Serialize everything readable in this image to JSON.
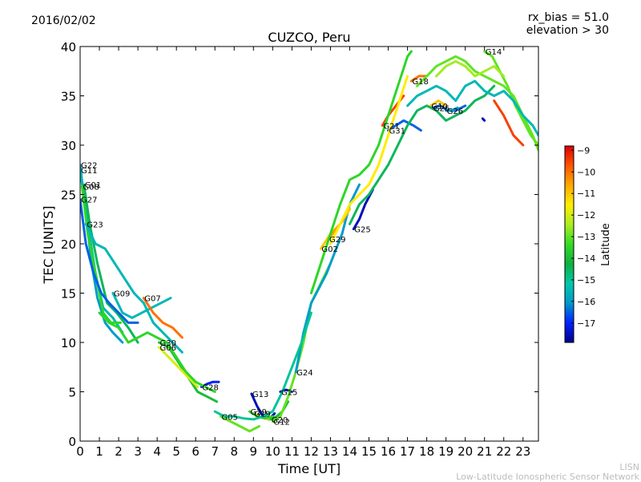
{
  "header": {
    "date": "2016/02/02",
    "rx_bias": "rx_bias = 51.0",
    "elevation": "elevation > 30"
  },
  "footer": {
    "line1": "LISN",
    "line2": "Low-Latitude Ionospheric Sensor Network"
  },
  "chart_data": {
    "type": "line",
    "title": "CUZCO, Peru",
    "xlabel": "Time [UT]",
    "ylabel": "TEC [UNITS]",
    "xlim": [
      0,
      23.8
    ],
    "ylim": [
      0,
      40
    ],
    "xticks": [
      0,
      1,
      2,
      3,
      4,
      5,
      6,
      7,
      8,
      9,
      10,
      11,
      12,
      13,
      14,
      15,
      16,
      17,
      18,
      19,
      20,
      21,
      22,
      23
    ],
    "yticks": [
      0,
      5,
      10,
      15,
      20,
      25,
      30,
      35,
      40
    ],
    "grid": false,
    "colorbar": {
      "label": "Latitude",
      "range": [
        -17.9,
        -8.8
      ],
      "ticks": [
        -9,
        -10,
        -11,
        -12,
        -13,
        -14,
        -15,
        -16,
        -17
      ],
      "colors": [
        "#00008b",
        "#0022ff",
        "#0099cc",
        "#00c8aa",
        "#10b040",
        "#33dd22",
        "#aaee22",
        "#ffee00",
        "#ffaa00",
        "#ff5500",
        "#dd0000"
      ]
    },
    "series": [
      {
        "name": "G22",
        "lat": -16.0,
        "x": [
          0,
          0.3,
          0.6,
          0.9,
          1.3,
          1.7,
          2.2
        ],
        "y": [
          28,
          23,
          18,
          14.5,
          12,
          11,
          10
        ]
      },
      {
        "name": "G11",
        "lat": -15.5,
        "x": [
          0,
          0.4,
          0.8,
          1.2,
          1.7,
          2.2
        ],
        "y": [
          27.5,
          22,
          17,
          13.5,
          12.5,
          11
        ]
      },
      {
        "name": "G01",
        "lat": -14.5,
        "x": [
          0.2,
          0.5,
          0.9,
          1.4,
          1.9,
          2.5,
          3.0
        ],
        "y": [
          26,
          22,
          18,
          14,
          13,
          11.5,
          10
        ]
      },
      {
        "name": "G08",
        "lat": -13.5,
        "x": [
          0.1,
          0.4,
          0.8,
          1.2,
          1.6,
          2.1
        ],
        "y": [
          25.8,
          21,
          17,
          13,
          12,
          12
        ]
      },
      {
        "name": "G27",
        "lat": -16.5,
        "x": [
          0,
          0.3,
          0.7,
          1.1,
          1.5,
          2.0,
          2.5,
          3.0
        ],
        "y": [
          24.5,
          20,
          17,
          15,
          14,
          13,
          12,
          12
        ]
      },
      {
        "name": "G23",
        "lat": -15.5,
        "x": [
          0.3,
          0.8,
          1.3,
          1.8,
          2.3,
          2.8,
          3.3,
          3.8,
          4.3,
          4.8,
          5.3
        ],
        "y": [
          22,
          20,
          19.5,
          18,
          16.5,
          15,
          14,
          12,
          11,
          10,
          9
        ]
      },
      {
        "name": "G09",
        "lat": -15.5,
        "x": [
          1.7,
          2.2,
          2.7,
          3.2,
          3.7,
          4.2,
          4.7
        ],
        "y": [
          15,
          13,
          12.5,
          13,
          13.5,
          14,
          14.5
        ]
      },
      {
        "name": "G07",
        "lat": -10.0,
        "x": [
          3.3,
          3.8,
          4.3,
          4.8,
          5.3
        ],
        "y": [
          14.5,
          13,
          12,
          11.5,
          10.5
        ]
      },
      {
        "name": "G30",
        "lat": -14.0,
        "x": [
          4.1,
          4.6,
          5.1,
          5.6,
          6.1,
          6.6,
          7.1
        ],
        "y": [
          10,
          9.5,
          8,
          6.5,
          5,
          4.5,
          4
        ]
      },
      {
        "name": "G06",
        "lat": -12.0,
        "x": [
          4.1,
          4.6,
          5.1,
          5.6,
          6.1
        ],
        "y": [
          9.5,
          8.5,
          7.5,
          6.5,
          5.5
        ]
      },
      {
        "name": "G28",
        "lat": -17.0,
        "x": [
          6.3,
          6.6,
          6.9,
          7.2
        ],
        "y": [
          5.5,
          5.8,
          6,
          6
        ]
      },
      {
        "name": "G05",
        "lat": -13.0,
        "x": [
          7.3,
          7.8,
          8.3,
          8.8,
          9.3
        ],
        "y": [
          2.5,
          2,
          1.5,
          1,
          1.5
        ]
      },
      {
        "name": "G13",
        "lat": -17.5,
        "x": [
          8.9,
          9.2,
          9.5,
          9.8,
          10.1
        ],
        "y": [
          4.8,
          3.5,
          2.5,
          2.2,
          2.8
        ]
      },
      {
        "name": "G19",
        "lat": -11.0,
        "x": [
          9.0,
          9.3,
          9.6,
          9.9
        ],
        "y": [
          2.8,
          2.5,
          2.3,
          2.2
        ]
      },
      {
        "name": "G29",
        "lat": -13.5,
        "x": [
          8.8,
          9.2,
          9.6,
          10.0
        ],
        "y": [
          3,
          2.5,
          2.3,
          2.5
        ]
      },
      {
        "name": "G15",
        "lat": -17.5,
        "x": [
          10.4,
          10.7,
          11.0
        ],
        "y": [
          5,
          5.2,
          5
        ]
      },
      {
        "name": "G20",
        "lat": -14.0,
        "x": [
          9.9,
          10.2,
          10.5,
          10.8
        ],
        "y": [
          2.2,
          2.5,
          3,
          4
        ]
      },
      {
        "name": "G12",
        "lat": -13.0,
        "x": [
          10.0,
          10.4,
          10.8,
          11.2,
          11.6,
          12.0,
          12.5,
          13.0
        ],
        "y": [
          2,
          2.5,
          4.5,
          7,
          10,
          14,
          16,
          18
        ]
      },
      {
        "name": "G24",
        "lat": -16.0,
        "x": [
          11.2,
          11.6,
          12.0,
          12.4,
          12.8,
          13.2,
          13.6,
          14.0,
          14.5
        ],
        "y": [
          7,
          11,
          14,
          15.5,
          17,
          19,
          21,
          24,
          26
        ]
      },
      {
        "name": "G02",
        "lat": -11.0,
        "x": [
          12.5,
          13.0,
          13.5,
          14.0
        ],
        "y": [
          19.5,
          21,
          22,
          23.5
        ]
      },
      {
        "name": "G29",
        "lat": -10.5,
        "x": [
          12.9,
          13.3,
          13.7
        ],
        "y": [
          20.5,
          21.5,
          22.5
        ]
      },
      {
        "name": "G25",
        "lat": -17.5,
        "x": [
          14.2,
          14.5,
          14.8,
          15.2
        ],
        "y": [
          21.5,
          22.5,
          24,
          25.5
        ]
      },
      {
        "name": "G21",
        "lat": -9.5,
        "x": [
          15.7,
          16.0,
          16.4,
          16.8
        ],
        "y": [
          32,
          33,
          34,
          35
        ]
      },
      {
        "name": "G31",
        "lat": -16.5,
        "x": [
          16.0,
          16.4,
          16.8,
          17.3,
          17.7
        ],
        "y": [
          31.5,
          32,
          32.5,
          32,
          31.5
        ]
      },
      {
        "name": "G18",
        "lat": -10.0,
        "x": [
          17.2,
          17.6,
          18.0
        ],
        "y": [
          36.5,
          37,
          37
        ]
      },
      {
        "name": "G10",
        "lat": -11.0,
        "x": [
          18.2,
          18.6,
          19.0
        ],
        "y": [
          34,
          34.5,
          34
        ]
      },
      {
        "name": "G26",
        "lat": -16.5,
        "x": [
          18.3,
          18.7,
          19.1,
          19.5,
          20.0
        ],
        "y": [
          33.8,
          34,
          33.5,
          33.5,
          34
        ]
      },
      {
        "name": "G26",
        "lat": -16.0,
        "x": [
          19.0,
          19.3,
          19.6
        ],
        "y": [
          33.5,
          33.5,
          33.8
        ]
      },
      {
        "name": "G14",
        "lat": -13.0,
        "x": [
          21.0,
          21.4,
          21.8,
          22.2,
          22.6,
          23.0,
          23.4,
          23.8
        ],
        "y": [
          39.5,
          39,
          37.5,
          36,
          34,
          32.5,
          31,
          30
        ]
      },
      {
        "name": "",
        "lat": -13.5,
        "x": [
          1.0,
          1.5,
          2.0,
          2.5,
          3.0,
          3.5,
          4.0,
          4.5,
          5.0,
          5.5,
          6.0,
          6.5,
          7.0
        ],
        "y": [
          13,
          12,
          11.5,
          10,
          10.5,
          11,
          10.5,
          10,
          8.5,
          7,
          6,
          5.5,
          5
        ]
      },
      {
        "name": "",
        "lat": -15.0,
        "x": [
          7.0,
          7.5,
          8.0,
          8.5,
          9.0,
          9.5,
          10.0,
          10.5,
          11.0,
          11.5,
          12.0
        ],
        "y": [
          3,
          2.5,
          2.5,
          2.3,
          2.2,
          2.5,
          3,
          5,
          7.5,
          10,
          13
        ]
      },
      {
        "name": "",
        "lat": -13.5,
        "x": [
          12.0,
          12.5,
          13.0,
          13.5,
          14.0,
          14.5,
          15.0,
          15.5,
          16.0,
          16.5,
          17.0,
          17.2
        ],
        "y": [
          15,
          18,
          21,
          24,
          26.5,
          27,
          28,
          30,
          33,
          36,
          39,
          39.5
        ]
      },
      {
        "name": "",
        "lat": -11.5,
        "x": [
          13.0,
          13.5,
          14.0,
          14.5,
          15.0,
          15.5,
          16.0,
          16.5,
          17.0
        ],
        "y": [
          20,
          22,
          24,
          25,
          26,
          28,
          31,
          34,
          37
        ]
      },
      {
        "name": "",
        "lat": -14.5,
        "x": [
          14.0,
          14.5,
          15.0,
          15.5,
          16.0,
          16.5,
          17.0,
          17.5,
          18.0,
          18.5,
          19.0,
          19.5,
          20.0,
          20.5,
          21.0,
          21.5
        ],
        "y": [
          22,
          24,
          25,
          26.5,
          28,
          30,
          32,
          33.5,
          34,
          33.5,
          32.5,
          33,
          33.5,
          34.5,
          35,
          36
        ]
      },
      {
        "name": "",
        "lat": -13.0,
        "x": [
          17.5,
          18.0,
          18.5,
          19.0,
          19.5,
          20.0,
          20.5,
          21.0,
          21.5,
          22.0,
          22.5,
          23.0,
          23.5,
          23.8
        ],
        "y": [
          36,
          37,
          38,
          38.5,
          39,
          38.5,
          37.5,
          37,
          36.5,
          36,
          35,
          33,
          31,
          29.5
        ]
      },
      {
        "name": "",
        "lat": -15.5,
        "x": [
          17.0,
          17.5,
          18.0,
          18.5,
          19.0,
          19.5,
          20.0,
          20.5,
          21.0,
          21.5,
          22.0,
          22.5,
          23.0,
          23.5,
          23.8
        ],
        "y": [
          34,
          35,
          35.5,
          36,
          35.5,
          34.5,
          36,
          36.5,
          35.5,
          35,
          35.5,
          34.5,
          33,
          32,
          31
        ]
      },
      {
        "name": "",
        "lat": -12.5,
        "x": [
          18.5,
          19.0,
          19.5,
          20.0,
          20.5,
          21.0,
          21.5,
          22.0
        ],
        "y": [
          37,
          38,
          38.5,
          38,
          37,
          37.5,
          38,
          37
        ]
      },
      {
        "name": "",
        "lat": -9.5,
        "x": [
          21.5,
          22.0,
          22.5,
          23.0
        ],
        "y": [
          34.5,
          33,
          31,
          30
        ]
      },
      {
        "name": "",
        "lat": -17.5,
        "x": [
          20.9,
          21.0
        ],
        "y": [
          32.7,
          32.5
        ]
      }
    ]
  }
}
